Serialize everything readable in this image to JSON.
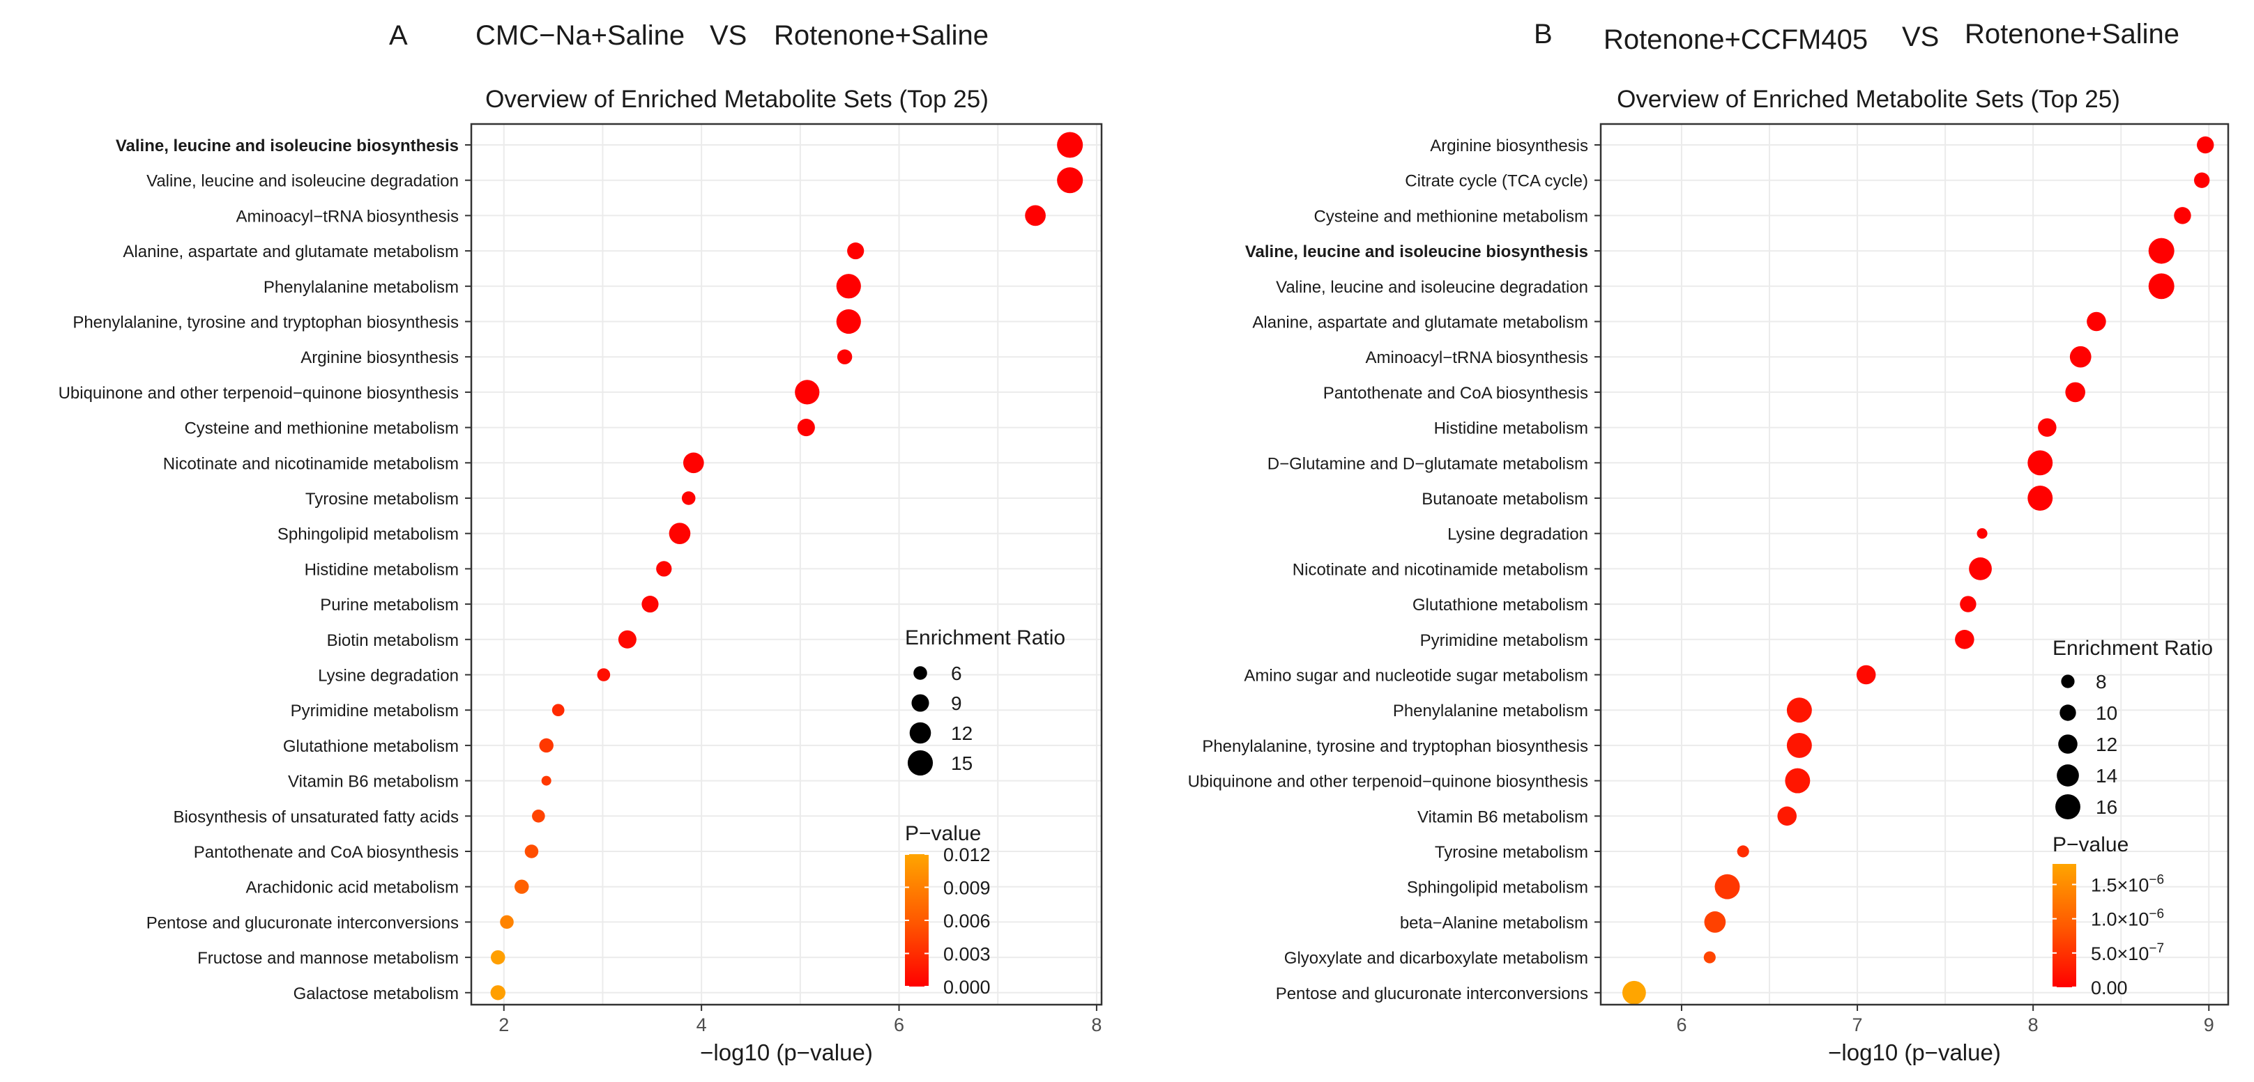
{
  "chart_data": [
    {
      "type": "scatter",
      "panel_letter": "A",
      "title_left": "CMC−Na+Saline",
      "title_vs": "VS",
      "title_right": "Rotenone+Saline",
      "subtitle": "Overview of Enriched Metabolite Sets (Top 25)",
      "xlabel": "−log10 (p−value)",
      "ylabel": "",
      "xlim": [
        1.67,
        8.05
      ],
      "xticks": [
        2,
        4,
        6,
        8
      ],
      "grid": true,
      "size_legend_title": "Enrichment Ratio",
      "size_legend_values": [
        6,
        9,
        12,
        15
      ],
      "size_range": [
        3,
        16
      ],
      "color_legend_title": "P−value",
      "color_legend_max": 0.012,
      "color_legend_ticks": [
        {
          "value": 0.012,
          "label": "0.012"
        },
        {
          "value": 0.009,
          "label": "0.009"
        },
        {
          "value": 0.006,
          "label": "0.006"
        },
        {
          "value": 0.003,
          "label": "0.003"
        },
        {
          "value": 0.0,
          "label": "0.000"
        }
      ],
      "bold_labels": [
        "Valine, leucine and isoleucine biosynthesis"
      ],
      "points": [
        {
          "pathway": "Valine, leucine and isoleucine biosynthesis",
          "x": 7.73,
          "ratio": 15.5,
          "p": 1.9e-08
        },
        {
          "pathway": "Valine, leucine and isoleucine degradation",
          "x": 7.73,
          "ratio": 15.5,
          "p": 1.9e-08
        },
        {
          "pathway": "Aminoacyl−tRNA biosynthesis",
          "x": 7.38,
          "ratio": 11.5,
          "p": 4.2e-08
        },
        {
          "pathway": "Alanine, aspartate and glutamate metabolism",
          "x": 5.56,
          "ratio": 8.5,
          "p": 2.8e-06
        },
        {
          "pathway": "Phenylalanine metabolism",
          "x": 5.49,
          "ratio": 14.5,
          "p": 3.2e-06
        },
        {
          "pathway": "Phenylalanine, tyrosine and tryptophan biosynthesis",
          "x": 5.49,
          "ratio": 14.5,
          "p": 3.2e-06
        },
        {
          "pathway": "Arginine biosynthesis",
          "x": 5.45,
          "ratio": 7.0,
          "p": 3.5e-06
        },
        {
          "pathway": "Ubiquinone and other terpenoid−quinone biosynthesis",
          "x": 5.07,
          "ratio": 14.5,
          "p": 8.5e-06
        },
        {
          "pathway": "Cysteine and methionine metabolism",
          "x": 5.06,
          "ratio": 9.0,
          "p": 8.7e-06
        },
        {
          "pathway": "Nicotinate and nicotinamide metabolism",
          "x": 3.92,
          "ratio": 11.5,
          "p": 0.00012
        },
        {
          "pathway": "Tyrosine metabolism",
          "x": 3.87,
          "ratio": 6.0,
          "p": 0.00013
        },
        {
          "pathway": "Sphingolipid metabolism",
          "x": 3.78,
          "ratio": 12.0,
          "p": 0.00017
        },
        {
          "pathway": "Histidine metabolism",
          "x": 3.62,
          "ratio": 7.5,
          "p": 0.00024
        },
        {
          "pathway": "Purine metabolism",
          "x": 3.48,
          "ratio": 8.5,
          "p": 0.00033
        },
        {
          "pathway": "Biotin metabolism",
          "x": 3.25,
          "ratio": 9.5,
          "p": 0.00056
        },
        {
          "pathway": "Lysine degradation",
          "x": 3.01,
          "ratio": 5.5,
          "p": 0.00098
        },
        {
          "pathway": "Pyrimidine metabolism",
          "x": 2.55,
          "ratio": 5.0,
          "p": 0.0028
        },
        {
          "pathway": "Glutathione metabolism",
          "x": 2.43,
          "ratio": 6.5,
          "p": 0.0037
        },
        {
          "pathway": "Vitamin B6 metabolism",
          "x": 2.43,
          "ratio": 3.0,
          "p": 0.0037
        },
        {
          "pathway": "Biosynthesis of unsaturated fatty acids",
          "x": 2.35,
          "ratio": 5.5,
          "p": 0.0045
        },
        {
          "pathway": "Pantothenate and CoA biosynthesis",
          "x": 2.28,
          "ratio": 6.0,
          "p": 0.0052
        },
        {
          "pathway": "Arachidonic acid metabolism",
          "x": 2.18,
          "ratio": 6.5,
          "p": 0.0066
        },
        {
          "pathway": "Pentose and glucuronate interconversions",
          "x": 2.03,
          "ratio": 6.0,
          "p": 0.0093
        },
        {
          "pathway": "Fructose and mannose metabolism",
          "x": 1.94,
          "ratio": 6.5,
          "p": 0.0115
        },
        {
          "pathway": "Galactose metabolism",
          "x": 1.94,
          "ratio": 7.0,
          "p": 0.0115
        }
      ]
    },
    {
      "type": "scatter",
      "panel_letter": "B",
      "title_left": "Rotenone+CCFM405",
      "title_vs": "VS",
      "title_right": "Rotenone+Saline",
      "subtitle": "Overview of Enriched Metabolite Sets (Top 25)",
      "xlabel": "−log10 (p−value)",
      "ylabel": "",
      "xlim": [
        5.54,
        9.11
      ],
      "xticks": [
        6,
        7,
        8,
        9
      ],
      "grid": true,
      "size_legend_title": "Enrichment Ratio",
      "size_legend_values": [
        8,
        10,
        12,
        14,
        16
      ],
      "size_range": [
        5.5,
        17
      ],
      "color_legend_title": "P−value",
      "color_legend_max": 1.8e-06,
      "color_legend_ticks": [
        {
          "value": 1.5e-06,
          "label": "1.5×10",
          "exp": "−6"
        },
        {
          "value": 1e-06,
          "label": "1.0×10",
          "exp": "−6"
        },
        {
          "value": 5e-07,
          "label": "5.0×10",
          "exp": "−7"
        },
        {
          "value": 0.0,
          "label": "0.00",
          "exp": ""
        }
      ],
      "bold_labels": [
        "Valine, leucine and isoleucine biosynthesis"
      ],
      "points": [
        {
          "pathway": "Arginine biosynthesis",
          "x": 8.98,
          "ratio": 10.5,
          "p": 1e-09
        },
        {
          "pathway": "Citrate cycle (TCA cycle)",
          "x": 8.96,
          "ratio": 9.5,
          "p": 1.1e-09
        },
        {
          "pathway": "Cysteine and methionine metabolism",
          "x": 8.85,
          "ratio": 10.5,
          "p": 1.4e-09
        },
        {
          "pathway": "Valine, leucine and isoleucine biosynthesis",
          "x": 8.73,
          "ratio": 16.5,
          "p": 1.9e-09
        },
        {
          "pathway": "Valine, leucine and isoleucine degradation",
          "x": 8.73,
          "ratio": 16.5,
          "p": 1.9e-09
        },
        {
          "pathway": "Alanine, aspartate and glutamate metabolism",
          "x": 8.36,
          "ratio": 12.0,
          "p": 4.4e-09
        },
        {
          "pathway": "Aminoacyl−tRNA biosynthesis",
          "x": 8.27,
          "ratio": 13.5,
          "p": 5.4e-09
        },
        {
          "pathway": "Pantothenate and CoA biosynthesis",
          "x": 8.24,
          "ratio": 12.5,
          "p": 5.8e-09
        },
        {
          "pathway": "Histidine metabolism",
          "x": 8.08,
          "ratio": 11.5,
          "p": 8.3e-09
        },
        {
          "pathway": "D−Glutamine and D−glutamate metabolism",
          "x": 8.04,
          "ratio": 16.0,
          "p": 9.1e-09
        },
        {
          "pathway": "Butanoate metabolism",
          "x": 8.04,
          "ratio": 16.0,
          "p": 9.1e-09
        },
        {
          "pathway": "Lysine degradation",
          "x": 7.71,
          "ratio": 6.0,
          "p": 1.9e-08
        },
        {
          "pathway": "Nicotinate and nicotinamide metabolism",
          "x": 7.7,
          "ratio": 14.5,
          "p": 2e-08
        },
        {
          "pathway": "Glutathione metabolism",
          "x": 7.63,
          "ratio": 10.0,
          "p": 2.3e-08
        },
        {
          "pathway": "Pyrimidine metabolism",
          "x": 7.61,
          "ratio": 12.0,
          "p": 2.5e-08
        },
        {
          "pathway": "Amino sugar and nucleotide sugar metabolism",
          "x": 7.05,
          "ratio": 12.0,
          "p": 8.9e-08
        },
        {
          "pathway": "Phenylalanine metabolism",
          "x": 6.67,
          "ratio": 16.0,
          "p": 2.1e-07
        },
        {
          "pathway": "Phenylalanine, tyrosine and tryptophan biosynthesis",
          "x": 6.67,
          "ratio": 16.0,
          "p": 2.1e-07
        },
        {
          "pathway": "Ubiquinone and other terpenoid−quinone biosynthesis",
          "x": 6.66,
          "ratio": 16.0,
          "p": 2.2e-07
        },
        {
          "pathway": "Vitamin B6 metabolism",
          "x": 6.6,
          "ratio": 12.0,
          "p": 2.5e-07
        },
        {
          "pathway": "Tyrosine metabolism",
          "x": 6.35,
          "ratio": 7.0,
          "p": 4.5e-07
        },
        {
          "pathway": "Sphingolipid metabolism",
          "x": 6.26,
          "ratio": 16.0,
          "p": 5.5e-07
        },
        {
          "pathway": "beta−Alanine metabolism",
          "x": 6.19,
          "ratio": 13.5,
          "p": 6.5e-07
        },
        {
          "pathway": "Glyoxylate and dicarboxylate metabolism",
          "x": 6.16,
          "ratio": 7.0,
          "p": 6.9e-07
        },
        {
          "pathway": "Pentose and glucuronate interconversions",
          "x": 5.73,
          "ratio": 15.0,
          "p": 1.8e-06
        }
      ]
    }
  ]
}
